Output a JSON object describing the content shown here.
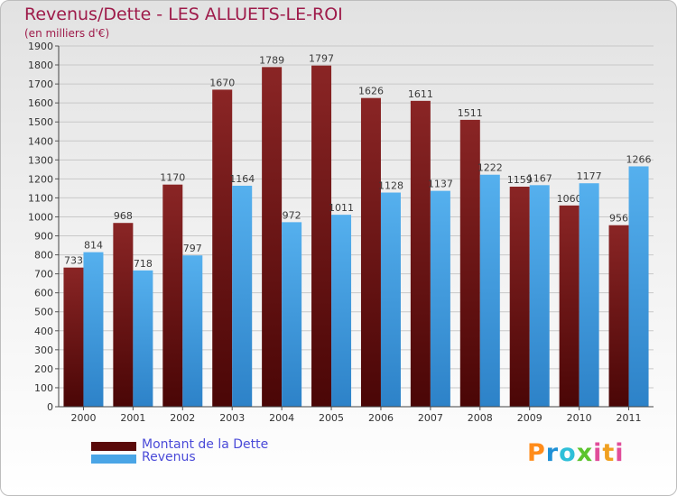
{
  "header": {
    "title": "Revenus/Dette - LES ALLUETS-LE-ROI",
    "subtitle": "(en milliers d'€)"
  },
  "legend": {
    "items": [
      {
        "label": "Montant de la Dette",
        "color": "#7a1818"
      },
      {
        "label": "Revenus",
        "color": "#4aa5e6"
      }
    ]
  },
  "logo": {
    "text": "Proxiti"
  },
  "chart_data": {
    "type": "bar",
    "title": "Revenus/Dette - LES ALLUETS-LE-ROI",
    "subtitle": "(en milliers d'€)",
    "xlabel": "",
    "ylabel": "",
    "ylim": [
      0,
      1900
    ],
    "yticks": [
      0,
      100,
      200,
      300,
      400,
      500,
      600,
      700,
      800,
      900,
      1000,
      1100,
      1200,
      1300,
      1400,
      1500,
      1600,
      1700,
      1800,
      1900
    ],
    "grid": true,
    "legend_position": "bottom-left",
    "categories": [
      "2000",
      "2001",
      "2002",
      "2003",
      "2004",
      "2005",
      "2006",
      "2007",
      "2008",
      "2009",
      "2010",
      "2011"
    ],
    "series": [
      {
        "name": "Montant de la Dette",
        "color": "#7a1818",
        "values": [
          733,
          968,
          1170,
          1670,
          1789,
          1797,
          1626,
          1611,
          1511,
          1159,
          1060,
          956
        ]
      },
      {
        "name": "Revenus",
        "color": "#4aa5e6",
        "values": [
          814,
          718,
          797,
          1164,
          972,
          1011,
          1128,
          1137,
          1222,
          1167,
          1177,
          1266
        ]
      }
    ]
  }
}
